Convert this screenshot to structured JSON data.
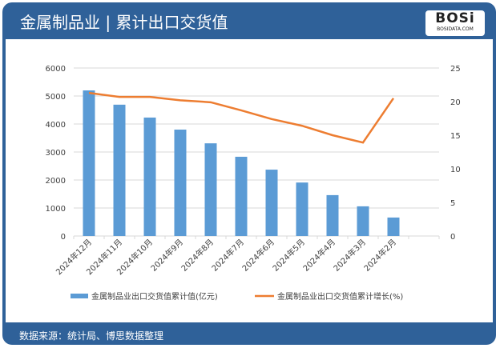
{
  "header": {
    "title": "金属制品业 | 累计出口交货值",
    "logo_text": "BOSi",
    "logo_sub": "BOSIDATA.COM"
  },
  "footer": {
    "source": "数据来源：统计局、博思数据整理"
  },
  "colors": {
    "bar": "#5b9bd5",
    "line": "#ed7d31",
    "header": "#2f6199"
  },
  "chart_data": {
    "type": "bar+line",
    "categories": [
      "2024年12月",
      "2024年11月",
      "2024年10月",
      "2024年9月",
      "2024年8月",
      "2024年7月",
      "2024年6月",
      "2024年5月",
      "2024年4月",
      "2024年3月",
      "2024年2月"
    ],
    "series": [
      {
        "name": "金属制品业出口交货值累计值(亿元)",
        "type": "bar",
        "axis": "left",
        "values": [
          5200,
          4690,
          4230,
          3800,
          3310,
          2830,
          2370,
          1910,
          1460,
          1060,
          660
        ]
      },
      {
        "name": "金属制品业出口交货值累计增长(%)",
        "type": "line",
        "axis": "right",
        "values": [
          21.3,
          20.7,
          20.7,
          20.2,
          19.9,
          18.7,
          17.4,
          16.4,
          15.0,
          13.9,
          20.5
        ]
      }
    ],
    "y_left": {
      "range": [
        0,
        6000
      ],
      "ticks": [
        0,
        1000,
        2000,
        3000,
        4000,
        5000,
        6000
      ]
    },
    "y_right": {
      "range": [
        0,
        25
      ],
      "ticks": [
        0,
        5,
        10,
        15,
        20,
        25
      ]
    },
    "grid": true,
    "legend": "bottom"
  }
}
